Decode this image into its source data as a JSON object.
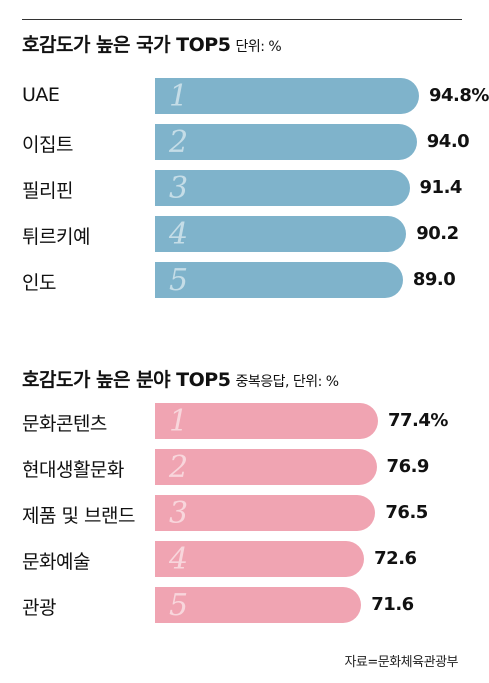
{
  "source": "자료=문화체육관광부",
  "colors": {
    "section1_bar": "#7fb3cb",
    "section2_bar": "#f0a4b2"
  },
  "chart_data": [
    {
      "type": "bar",
      "orientation": "horizontal",
      "title": "호감도가 높은 국가 TOP5",
      "unit": "단위: %",
      "categories": [
        "UAE",
        "이집트",
        "필리핀",
        "튀르키예",
        "인도"
      ],
      "ranks": [
        "1",
        "2",
        "3",
        "4",
        "5"
      ],
      "values": [
        94.8,
        94.0,
        91.4,
        90.2,
        89.0
      ],
      "value_labels": [
        "94.8%",
        "94.0",
        "91.4",
        "90.2",
        "89.0"
      ]
    },
    {
      "type": "bar",
      "orientation": "horizontal",
      "title": "호감도가 높은 분야 TOP5",
      "unit": "중복응답, 단위: %",
      "categories": [
        "문화콘텐츠",
        "현대생활문화",
        "제품 및 브랜드",
        "문화예술",
        "관광"
      ],
      "ranks": [
        "1",
        "2",
        "3",
        "4",
        "5"
      ],
      "values": [
        77.4,
        76.9,
        76.5,
        72.6,
        71.6
      ],
      "value_labels": [
        "77.4%",
        "76.9",
        "76.5",
        "72.6",
        "71.6"
      ]
    }
  ]
}
